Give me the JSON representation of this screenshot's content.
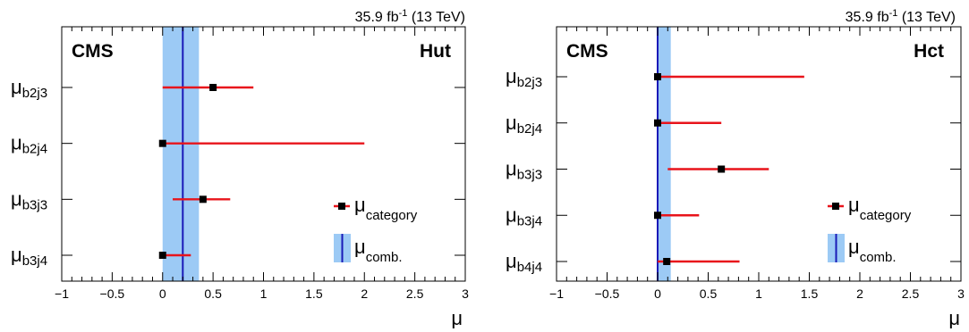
{
  "colors": {
    "point": "#000000",
    "error_bar": "#e8141b",
    "combined_line": "#1a1ab8",
    "combined_band": "#9ccaf5",
    "frame": "#000000"
  },
  "chart_data": [
    {
      "type": "scatter",
      "experiment_label": "CMS",
      "luminosity": {
        "value": "35.9 fb",
        "exponent": "-1",
        "energy": " (13 TeV)"
      },
      "process_label": "Hut",
      "xlabel": "μ",
      "xlim": [
        -1,
        3
      ],
      "x_ticks": [
        "−1",
        "−0.5",
        "0",
        "0.5",
        "1",
        "1.5",
        "2",
        "2.5",
        "3"
      ],
      "combined": {
        "value": 0.2,
        "interval": [
          0.0,
          0.36
        ]
      },
      "categories": [
        {
          "symbol": "μ",
          "subscript": "b2j3",
          "value": 0.5,
          "interval": [
            0.0,
            0.9
          ]
        },
        {
          "symbol": "μ",
          "subscript": "b2j4",
          "value": 0.0,
          "interval": [
            0.0,
            2.0
          ]
        },
        {
          "symbol": "μ",
          "subscript": "b3j3",
          "value": 0.4,
          "interval": [
            0.1,
            0.67
          ]
        },
        {
          "symbol": "μ",
          "subscript": "b3j4",
          "value": 0.0,
          "interval": [
            0.0,
            0.28
          ]
        }
      ],
      "legend": {
        "position": "bottom-right",
        "entries": [
          {
            "symbol": "μ",
            "subscript": "category"
          },
          {
            "symbol": "μ",
            "subscript": "comb."
          }
        ]
      }
    },
    {
      "type": "scatter",
      "experiment_label": "CMS",
      "luminosity": {
        "value": "35.9 fb",
        "exponent": "-1",
        "energy": " (13 TeV)"
      },
      "process_label": "Hct",
      "xlabel": "μ",
      "xlim": [
        -1,
        3
      ],
      "x_ticks": [
        "−1",
        "−0.5",
        "0",
        "0.5",
        "1",
        "1.5",
        "2",
        "2.5",
        "3"
      ],
      "combined": {
        "value": 0.0,
        "interval": [
          0.0,
          0.13
        ]
      },
      "categories": [
        {
          "symbol": "μ",
          "subscript": "b2j3",
          "value": 0.0,
          "interval": [
            0.0,
            1.45
          ]
        },
        {
          "symbol": "μ",
          "subscript": "b2j4",
          "value": 0.0,
          "interval": [
            0.0,
            0.63
          ]
        },
        {
          "symbol": "μ",
          "subscript": "b3j3",
          "value": 0.63,
          "interval": [
            0.1,
            1.1
          ]
        },
        {
          "symbol": "μ",
          "subscript": "b3j4",
          "value": 0.0,
          "interval": [
            0.0,
            0.41
          ]
        },
        {
          "symbol": "μ",
          "subscript": "b4j4",
          "value": 0.09,
          "interval": [
            0.0,
            0.81
          ]
        }
      ],
      "legend": {
        "position": "bottom-right",
        "entries": [
          {
            "symbol": "μ",
            "subscript": "category"
          },
          {
            "symbol": "μ",
            "subscript": "comb."
          }
        ]
      }
    }
  ]
}
